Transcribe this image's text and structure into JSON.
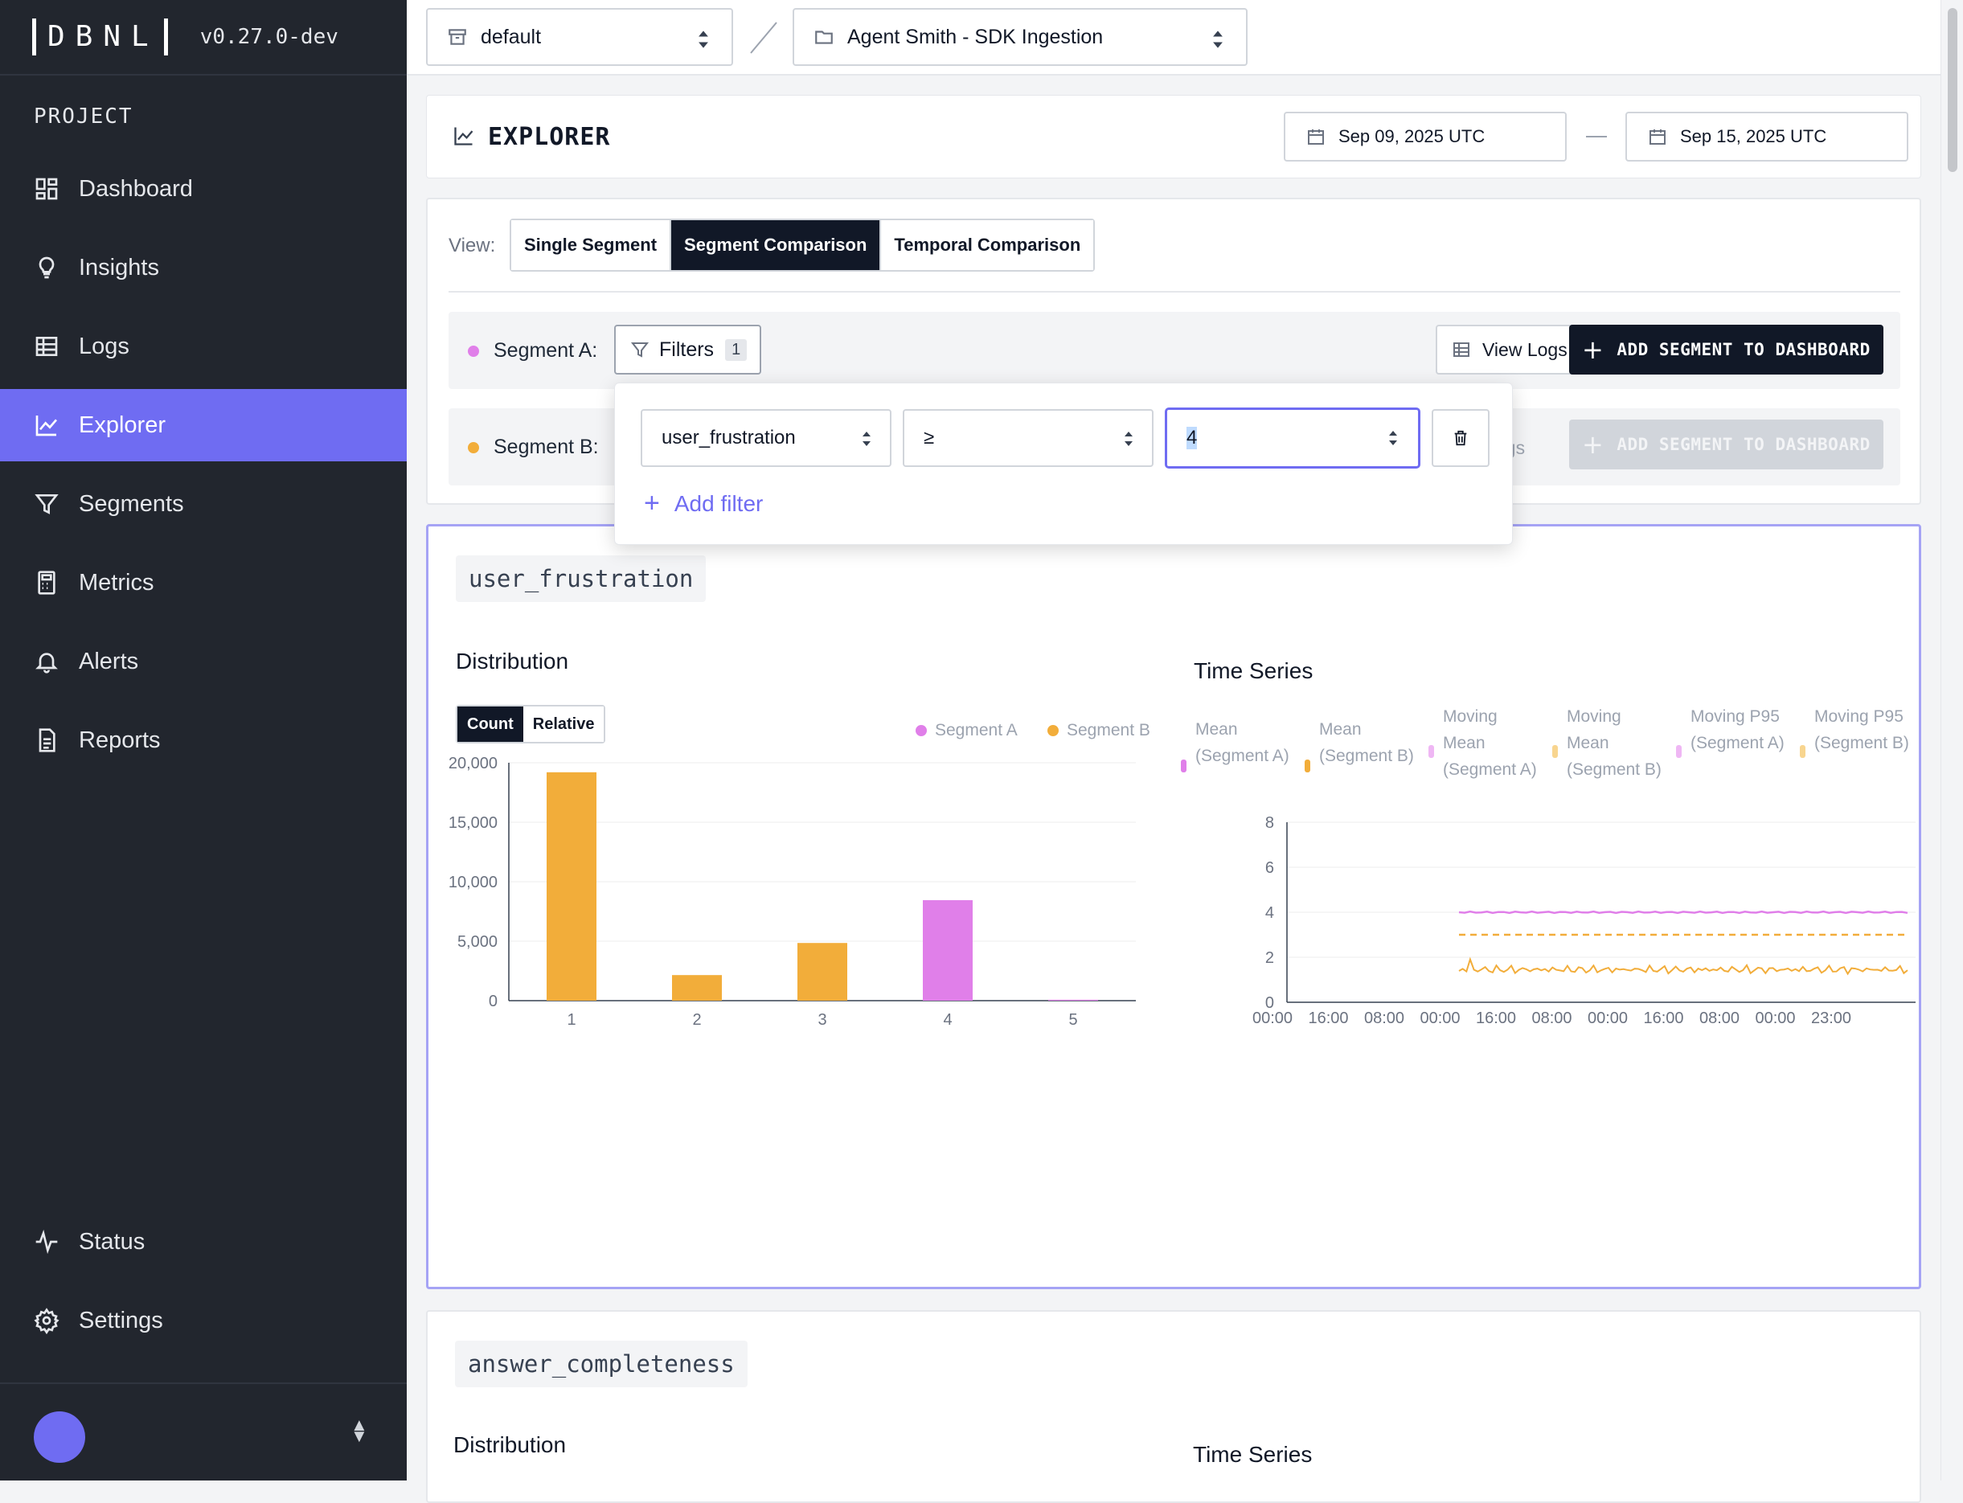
{
  "app": {
    "logo": "DBNL",
    "version": "v0.27.0-dev"
  },
  "sidebar": {
    "section_label": "PROJECT",
    "items": [
      {
        "label": "Dashboard",
        "icon": "grid-icon"
      },
      {
        "label": "Insights",
        "icon": "lightbulb-icon"
      },
      {
        "label": "Logs",
        "icon": "table-icon"
      },
      {
        "label": "Explorer",
        "icon": "chart-line-icon",
        "active": true
      },
      {
        "label": "Segments",
        "icon": "filter-icon"
      },
      {
        "label": "Metrics",
        "icon": "calculator-icon"
      },
      {
        "label": "Alerts",
        "icon": "bell-icon"
      },
      {
        "label": "Reports",
        "icon": "document-icon"
      }
    ],
    "bottom_items": [
      {
        "label": "Status",
        "icon": "activity-icon"
      },
      {
        "label": "Settings",
        "icon": "gear-icon"
      }
    ]
  },
  "topbar": {
    "namespace": "default",
    "project": "Agent Smith - SDK Ingestion"
  },
  "explorer": {
    "title": "EXPLORER",
    "date_start": "Sep 09, 2025 UTC",
    "date_end": "Sep 15, 2025 UTC"
  },
  "view": {
    "label": "View:",
    "options": [
      "Single Segment",
      "Segment Comparison",
      "Temporal Comparison"
    ],
    "selected": "Segment Comparison"
  },
  "segments": {
    "a": {
      "label": "Segment A:",
      "filters_label": "Filters",
      "filters_count": "1",
      "view_logs": "View Logs",
      "add_button": "ADD SEGMENT TO DASHBOARD",
      "color": "#e07fe9"
    },
    "b": {
      "label": "Segment B:",
      "view_logs_partial": "ogs",
      "add_button": "ADD SEGMENT TO DASHBOARD",
      "color": "#f2ad3a"
    }
  },
  "filter_popover": {
    "field": "user_frustration",
    "operator": "≥",
    "value": "4",
    "add_filter": "Add filter"
  },
  "metric1": {
    "name": "user_frustration",
    "distribution_title": "Distribution",
    "timeseries_title": "Time Series",
    "toggle": [
      "Count",
      "Relative"
    ],
    "toggle_selected": "Count",
    "legend": [
      "Segment A",
      "Segment B"
    ],
    "ts_legend": [
      {
        "label": "Mean (Segment A)",
        "color": "#e07fe9"
      },
      {
        "label": "Mean (Segment B)",
        "color": "#f2ad3a"
      },
      {
        "label": "Moving Mean (Segment A)",
        "color": "#efb7f4"
      },
      {
        "label": "Moving Mean (Segment B)",
        "color": "#f8d58f"
      },
      {
        "label": "Moving P95 (Segment A)",
        "color": "#efb7f4"
      },
      {
        "label": "Moving P95 (Segment B)",
        "color": "#f8d58f"
      }
    ]
  },
  "chart_data": [
    {
      "type": "bar",
      "title": "Distribution",
      "categories": [
        "1",
        "2",
        "3",
        "4",
        "5"
      ],
      "series": [
        {
          "name": "Segment B",
          "values": [
            19200,
            2150,
            4850,
            0,
            0
          ],
          "color": "#f2ad3a"
        },
        {
          "name": "Segment A",
          "values": [
            0,
            0,
            0,
            8450,
            80
          ],
          "color": "#e07fe9"
        }
      ],
      "ylim": [
        0,
        20000
      ],
      "yticks": [
        "0",
        "5,000",
        "10,000",
        "15,000",
        "20,000"
      ]
    },
    {
      "type": "line",
      "title": "Time Series",
      "x_ticks": [
        "00:00",
        "16:00",
        "08:00",
        "00:00",
        "16:00",
        "08:00",
        "00:00",
        "16:00",
        "08:00",
        "00:00",
        "23:00"
      ],
      "ylim": [
        0,
        8
      ],
      "yticks": [
        "0",
        "2",
        "4",
        "6",
        "8"
      ],
      "series": [
        {
          "name": "Mean (Segment A)",
          "value": 4.0,
          "color": "#e07fe9"
        },
        {
          "name": "Mean (Segment B)",
          "value": 3.0,
          "color": "#f2ad3a",
          "dashed": true
        },
        {
          "name": "Moving Mean (Segment B)",
          "value": 1.45,
          "color": "#f2ad3a",
          "noisy": true
        }
      ]
    }
  ],
  "metric2": {
    "name": "answer_completeness",
    "distribution_title": "Distribution",
    "timeseries_title": "Time Series"
  }
}
